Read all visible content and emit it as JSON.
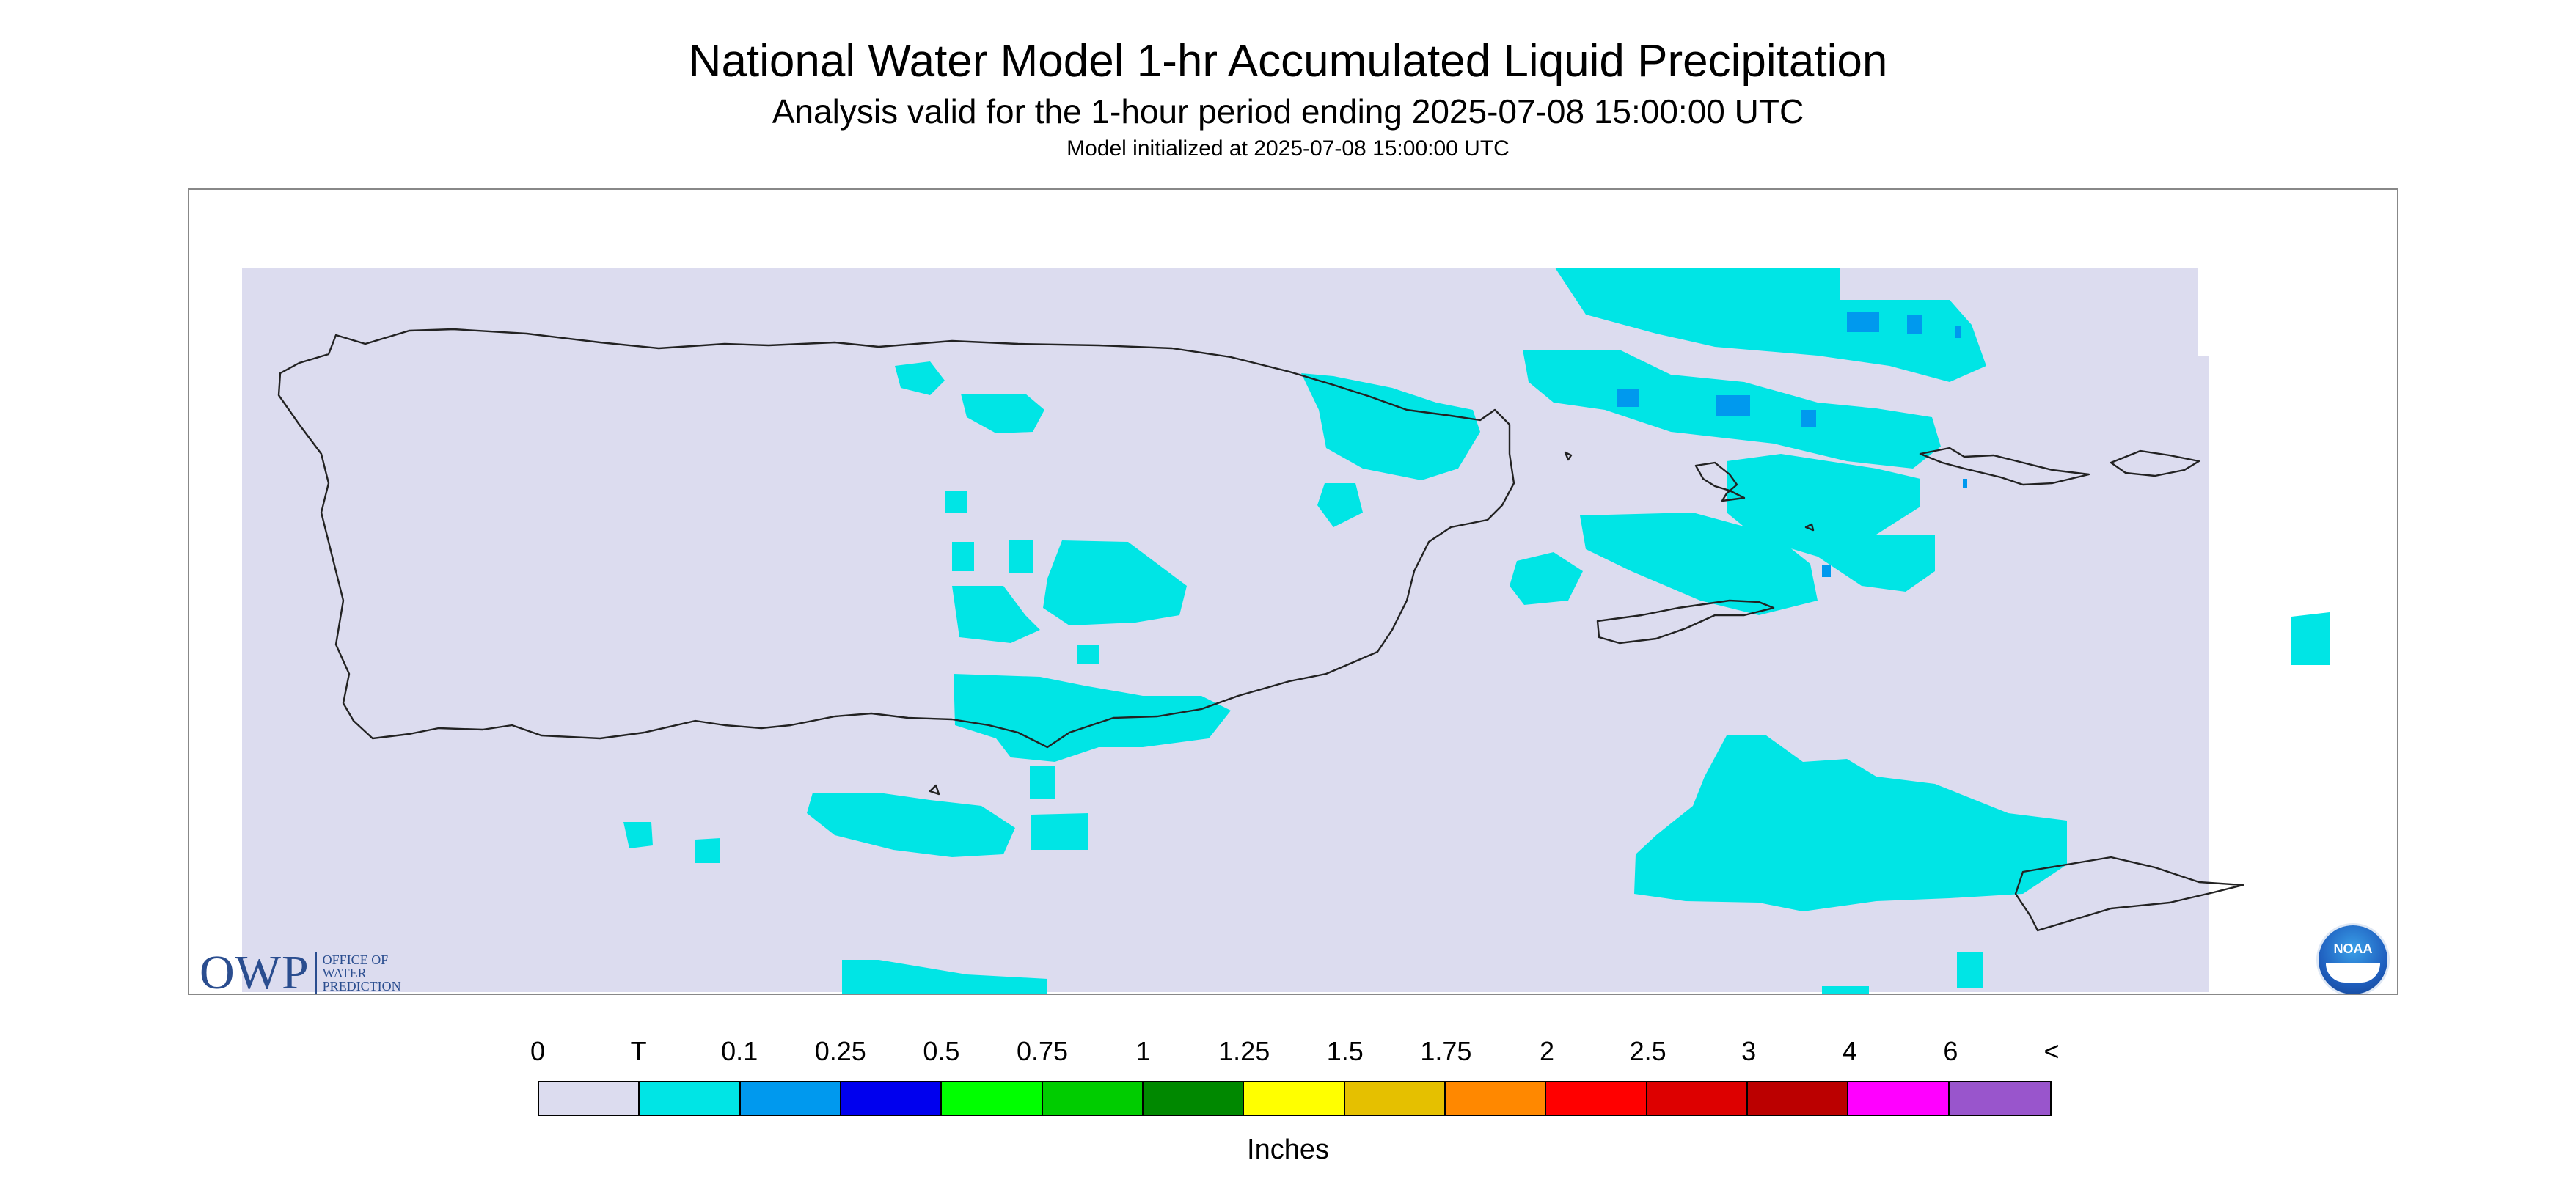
{
  "header": {
    "title": "National Water Model 1-hr Accumulated Liquid Precipitation",
    "subtitle": "Analysis valid for the 1-hour period ending 2025-07-08 15:00:00 UTC",
    "init": "Model initialized at 2025-07-08 15:00:00 UTC"
  },
  "legend": {
    "labels": [
      "0",
      "T",
      "0.1",
      "0.25",
      "0.5",
      "0.75",
      "1",
      "1.25",
      "1.5",
      "1.75",
      "2",
      "2.5",
      "3",
      "4",
      "6",
      "<"
    ],
    "colors": [
      "#dcdcef",
      "#00e5e5",
      "#0099ee",
      "#0000ee",
      "#00ff00",
      "#00cc00",
      "#008800",
      "#ffff00",
      "#e5c000",
      "#ff8800",
      "#ff0000",
      "#dd0000",
      "#bb0000",
      "#ff00ff",
      "#9955cc"
    ],
    "units": "Inches"
  },
  "logos": {
    "owp_big": "OWP",
    "owp_line1": "OFFICE OF",
    "owp_line2": "WATER",
    "owp_line3": "PREDICTION",
    "noaa": "NOAA"
  },
  "map": {
    "region": "Puerto Rico and U.S. Virgin Islands",
    "background_color": "#dcdcef",
    "trace_color": "#00e5e5",
    "light_color": "#0099ee",
    "coast_color": "#222222"
  }
}
